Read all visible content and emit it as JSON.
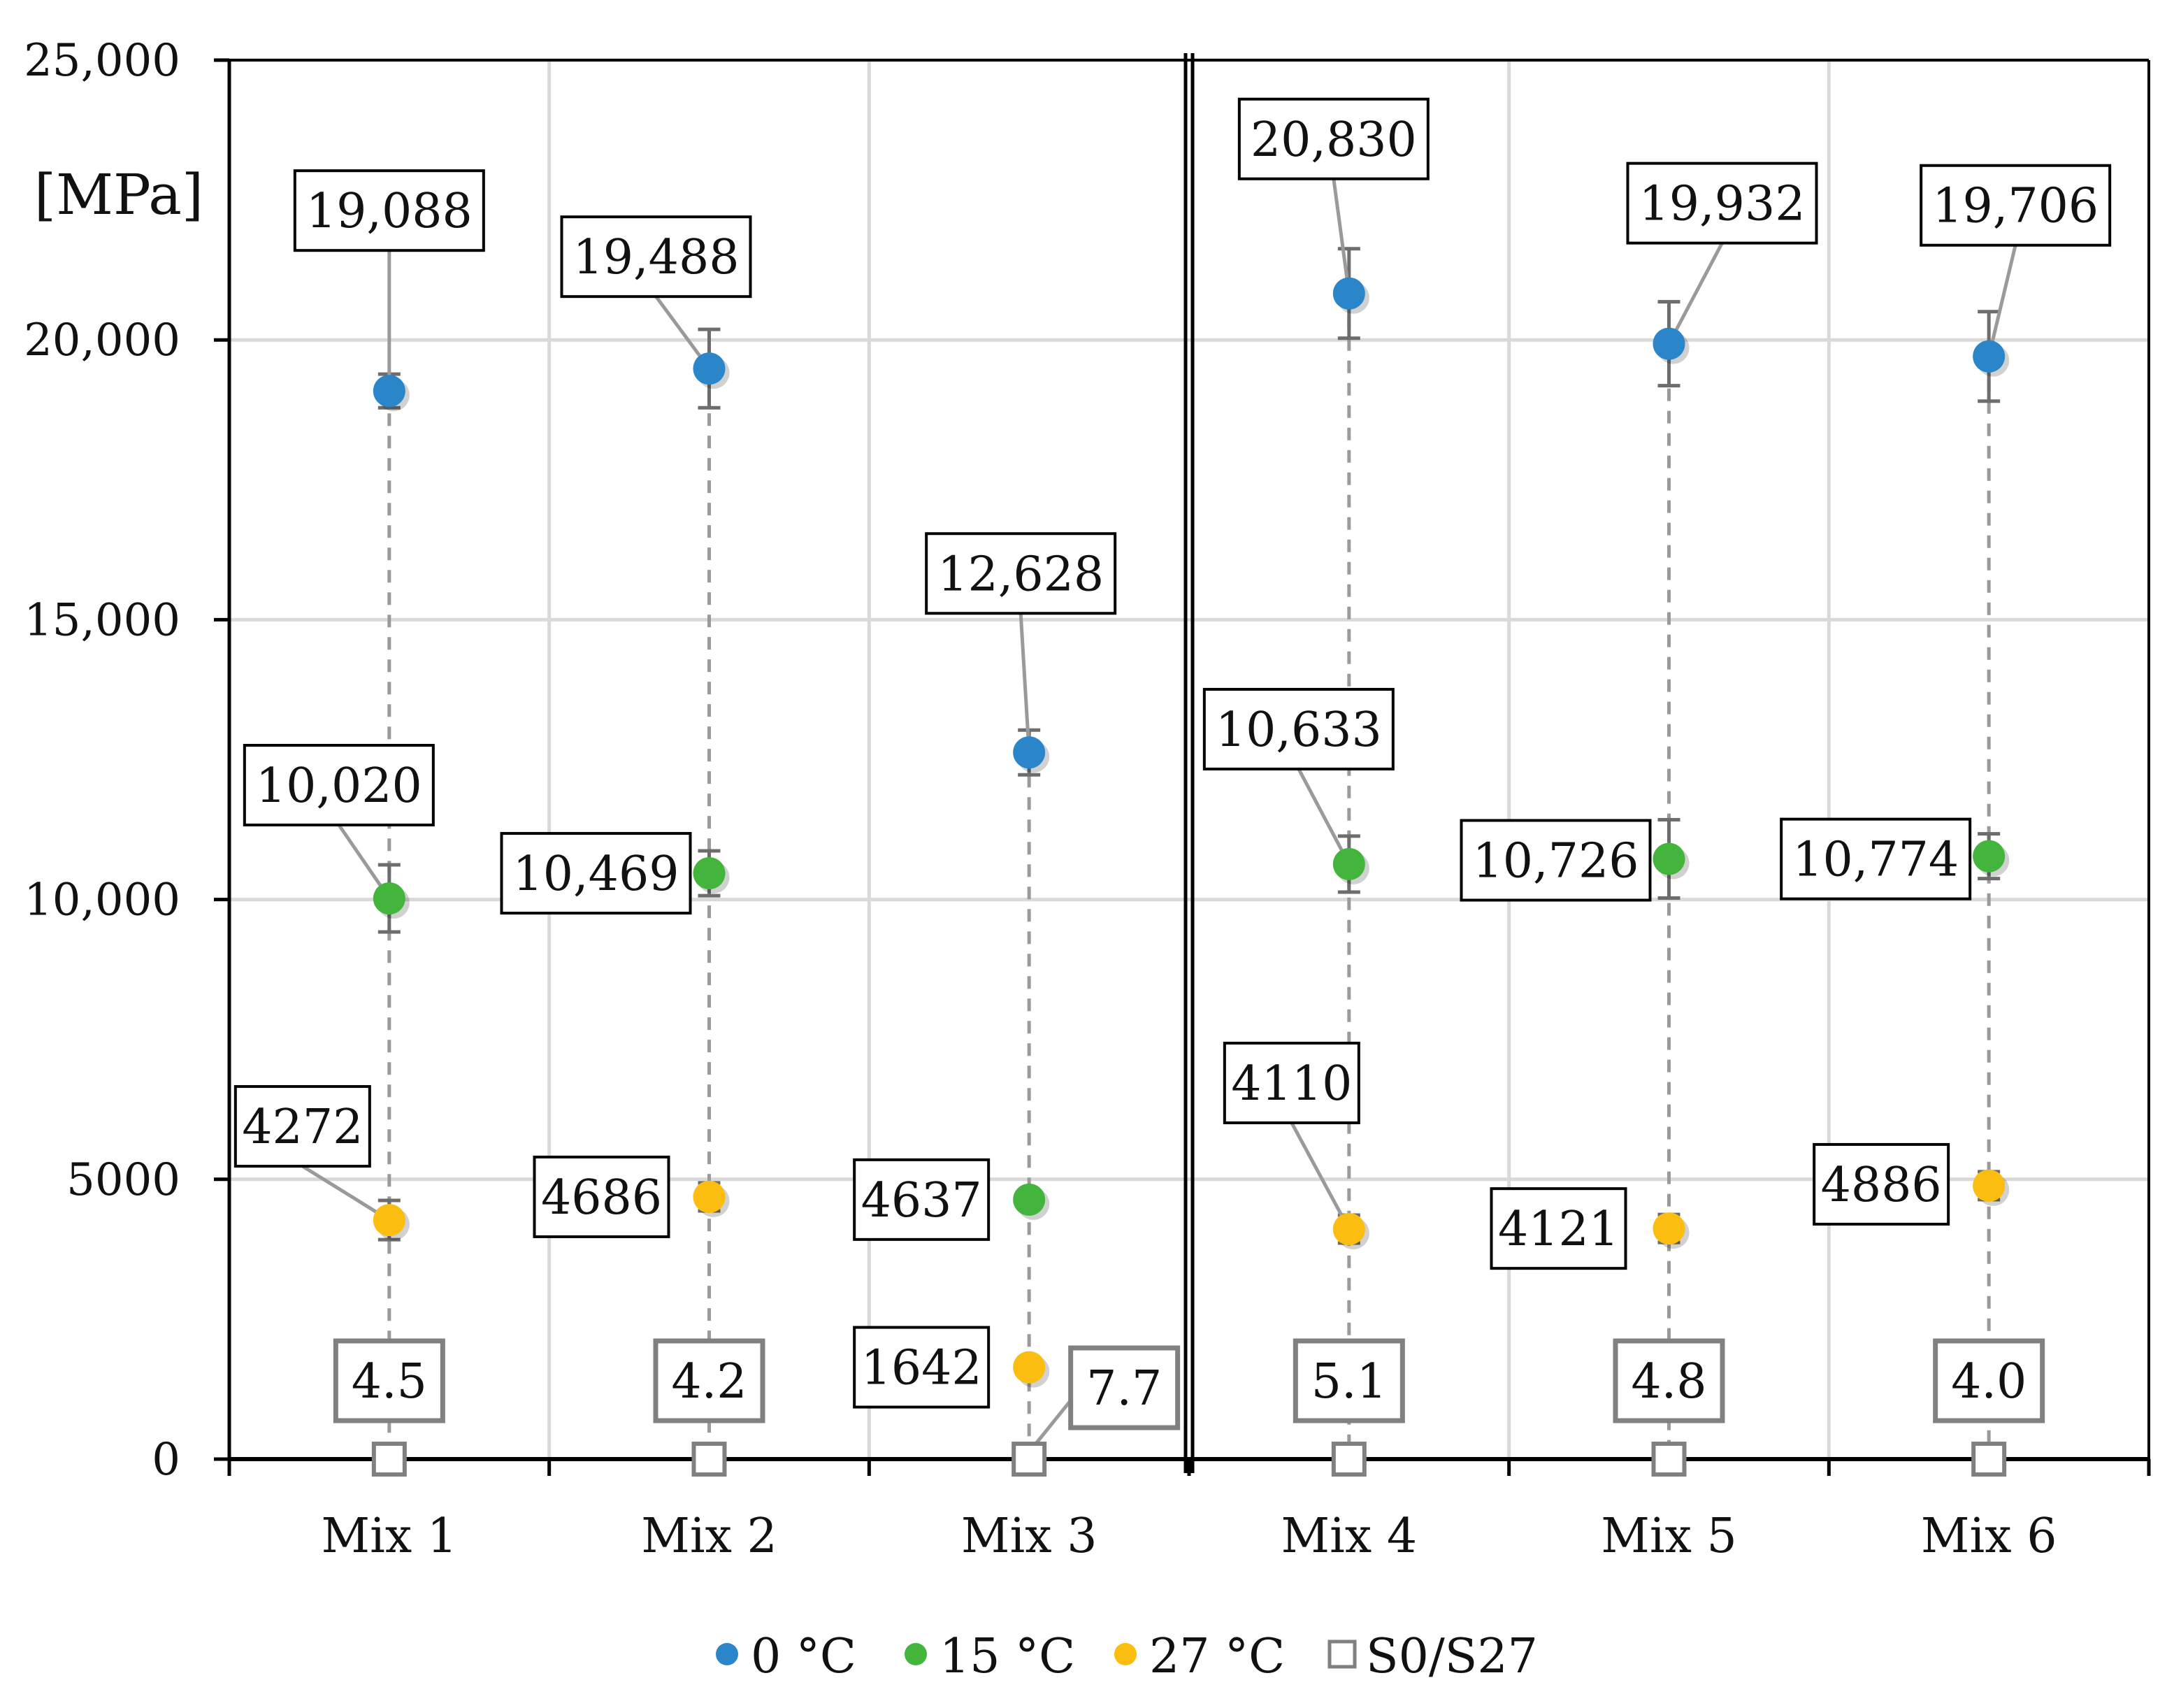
{
  "chart_data": {
    "type": "scatter",
    "title": "",
    "xlabel": "",
    "ylabel": "[MPa]",
    "ylim": [
      0,
      25000
    ],
    "yticks": [
      0,
      5000,
      10000,
      15000,
      20000,
      25000
    ],
    "ytick_labels": [
      "0",
      "5000",
      "10,000",
      "15,000",
      "20,000",
      "25,000"
    ],
    "grid": true,
    "legend_position": "bottom",
    "categories": [
      "Mix 1",
      "Mix 2",
      "Mix 3",
      "Mix 4",
      "Mix 5",
      "Mix 6"
    ],
    "group_divider_after": "Mix 3",
    "series": [
      {
        "name": "0 °C",
        "color": "#2a86c9",
        "marker": "circle",
        "values": [
          19088,
          19488,
          12628,
          20830,
          19932,
          19706
        ],
        "labels": [
          "19,088",
          "19,488",
          "12,628",
          "20,830",
          "19,932",
          "19,706"
        ],
        "error": [
          300,
          700,
          400,
          800,
          750,
          800
        ]
      },
      {
        "name": "15 °C",
        "color": "#44b53c",
        "marker": "circle",
        "values": [
          10020,
          10469,
          4637,
          10633,
          10726,
          10774
        ],
        "labels": [
          "10,020",
          "10,469",
          "4637",
          "10,633",
          "10,726",
          "10,774"
        ],
        "error": [
          600,
          400,
          0,
          500,
          700,
          400
        ]
      },
      {
        "name": "27 °C",
        "color": "#fbbd0f",
        "marker": "circle",
        "values": [
          4272,
          4686,
          1642,
          4110,
          4121,
          4886
        ],
        "labels": [
          "4272",
          "4686",
          "1642",
          "4110",
          "4121",
          "4886"
        ],
        "error": [
          350,
          250,
          0,
          250,
          250,
          250
        ]
      },
      {
        "name": "S0/S27",
        "color": "#808080",
        "marker": "square-open",
        "values": [
          4.5,
          4.2,
          7.7,
          5.1,
          4.8,
          4.0
        ],
        "labels": [
          "4.5",
          "4.2",
          "7.7",
          "5.1",
          "4.8",
          "4.0"
        ]
      }
    ]
  }
}
